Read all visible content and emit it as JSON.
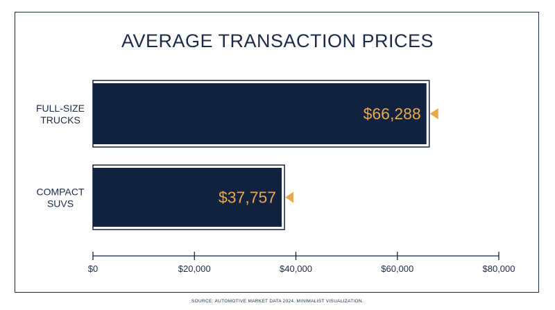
{
  "colors": {
    "navy": "#12213f",
    "accent": "#e9a84a",
    "frame": "#1b2a48"
  },
  "chart_data": {
    "type": "bar",
    "orientation": "horizontal",
    "title": "AVERAGE TRANSACTION PRICES",
    "categories": [
      {
        "line1": "FULL-SIZE",
        "line2": "TRUCKS"
      },
      {
        "line1": "COMPACT",
        "line2": "SUVS"
      }
    ],
    "values": [
      66288,
      37757
    ],
    "value_labels": [
      "$66,288",
      "$37,757"
    ],
    "xlim": [
      0,
      80000
    ],
    "xticks": [
      0,
      20000,
      40000,
      60000,
      80000
    ],
    "xtick_labels": [
      "$0",
      "$20,000",
      "$40,000",
      "$60,000",
      "$80,000"
    ],
    "grid": false,
    "legend": "none"
  },
  "footer": {
    "source": "SOURCE: AUTOMOTIVE MARKET DATA 2024. MINIMALIST VISUALIZATION."
  }
}
